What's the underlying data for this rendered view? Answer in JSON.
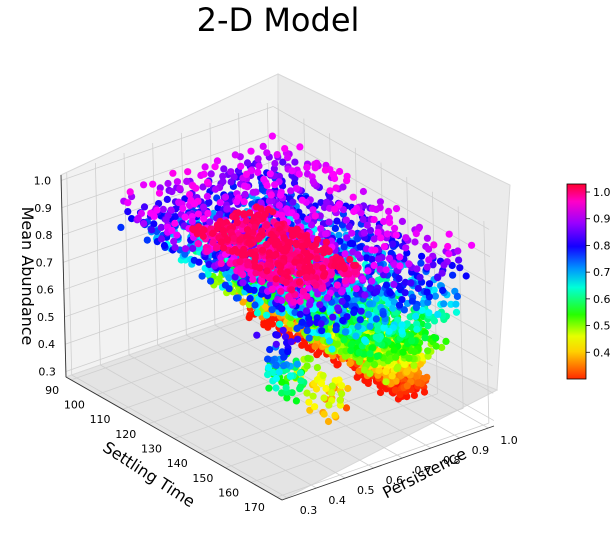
{
  "chart_data": {
    "type": "scatter",
    "projection": "3d",
    "title": "2-D Model",
    "xlabel": "Settling Time",
    "ylabel": "Persistence",
    "zlabel": "Mean Abundance",
    "x_ticks": [
      "90",
      "100",
      "110",
      "120",
      "130",
      "140",
      "150",
      "160",
      "170"
    ],
    "y_ticks": [
      "0.3",
      "0.4",
      "0.5",
      "0.6",
      "0.7",
      "0.8",
      "0.9",
      "1.0"
    ],
    "z_ticks": [
      "0.3",
      "0.4",
      "0.5",
      "0.6",
      "0.7",
      "0.8",
      "0.9",
      "1.0"
    ],
    "xlim": [
      88,
      172
    ],
    "ylim": [
      0.28,
      1.02
    ],
    "zlim": [
      0.28,
      1.02
    ],
    "grid": true,
    "colormap": "gist_rainbow_r",
    "color_by": "Mean Abundance",
    "colorbar": {
      "ticks": [
        "0.4",
        "0.5",
        "0.6",
        "0.7",
        "0.8",
        "0.9",
        "1.0"
      ],
      "range": [
        0.3,
        1.03
      ],
      "placement": "right"
    },
    "points_description_note": "",
    "bands": [
      {
        "z": 0.32,
        "x": [
          90,
          150
        ],
        "y": [
          0.9,
          1.0
        ]
      },
      {
        "z": 0.4,
        "x": [
          90,
          150
        ],
        "y": [
          0.85,
          1.0
        ]
      },
      {
        "z": 0.5,
        "x": [
          90,
          158
        ],
        "y": [
          0.75,
          1.0
        ]
      },
      {
        "z": 0.6,
        "x": [
          90,
          160
        ],
        "y": [
          0.7,
          1.0
        ]
      },
      {
        "z": 0.7,
        "x": [
          90,
          165
        ],
        "y": [
          0.55,
          1.0
        ]
      },
      {
        "z": 0.8,
        "x": [
          90,
          168
        ],
        "y": [
          0.45,
          1.0
        ]
      },
      {
        "z": 0.9,
        "x": [
          92,
          168
        ],
        "y": [
          0.4,
          1.0
        ]
      },
      {
        "z": 1.0,
        "x": [
          130,
          170
        ],
        "y": [
          0.35,
          0.6
        ]
      }
    ],
    "scatter_tail": [
      {
        "x": 150,
        "y": 0.5,
        "z": 0.55
      },
      {
        "x": 160,
        "y": 0.4,
        "z": 0.6
      },
      {
        "x": 165,
        "y": 0.35,
        "z": 0.7
      },
      {
        "x": 168,
        "y": 0.32,
        "z": 0.8
      },
      {
        "x": 140,
        "y": 0.65,
        "z": 0.45
      },
      {
        "x": 145,
        "y": 0.7,
        "z": 0.38
      },
      {
        "x": 155,
        "y": 0.6,
        "z": 0.42
      }
    ]
  }
}
